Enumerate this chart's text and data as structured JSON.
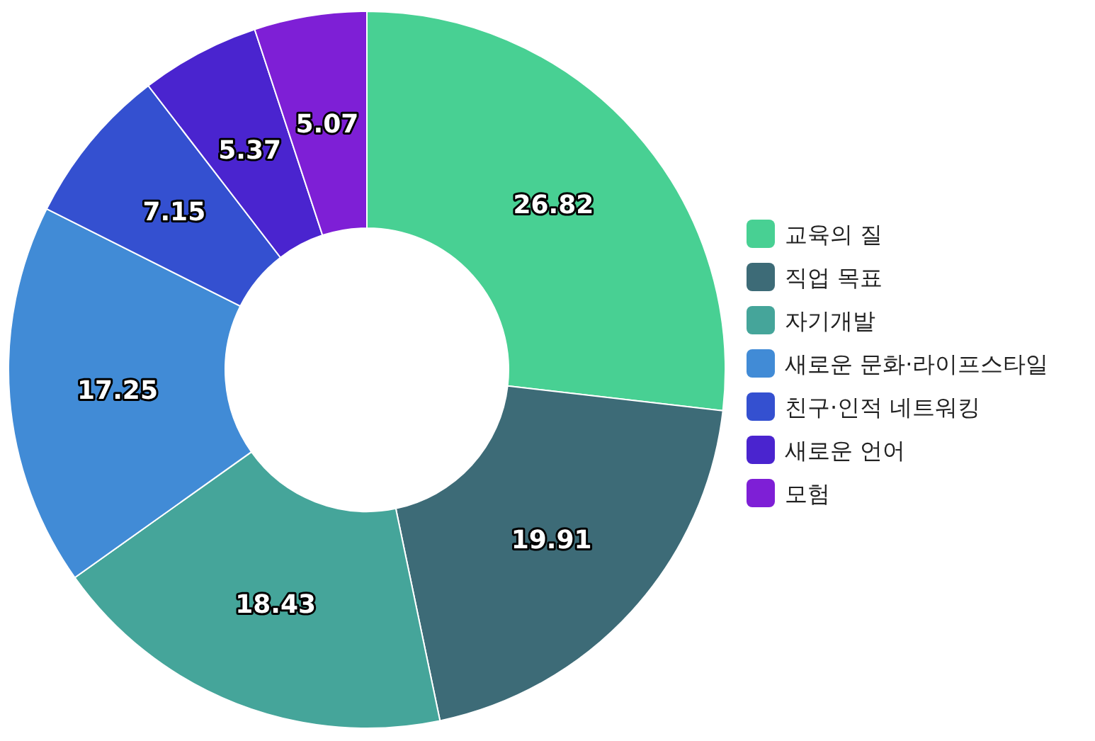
{
  "chart_data": {
    "type": "donut",
    "categories": [
      "교육의 질",
      "직업 목표",
      "자기개발",
      "새로운 문화·라이프스타일",
      "친구·인적 네트워킹",
      "새로운 언어",
      "모험"
    ],
    "values": [
      26.82,
      19.91,
      18.43,
      17.25,
      7.15,
      5.37,
      5.07
    ],
    "colors": [
      "#48d093",
      "#3d6b77",
      "#45a59a",
      "#418bd6",
      "#3450d0",
      "#4a24cf",
      "#7e1fd6"
    ],
    "data_labels": true,
    "legend": "right"
  }
}
